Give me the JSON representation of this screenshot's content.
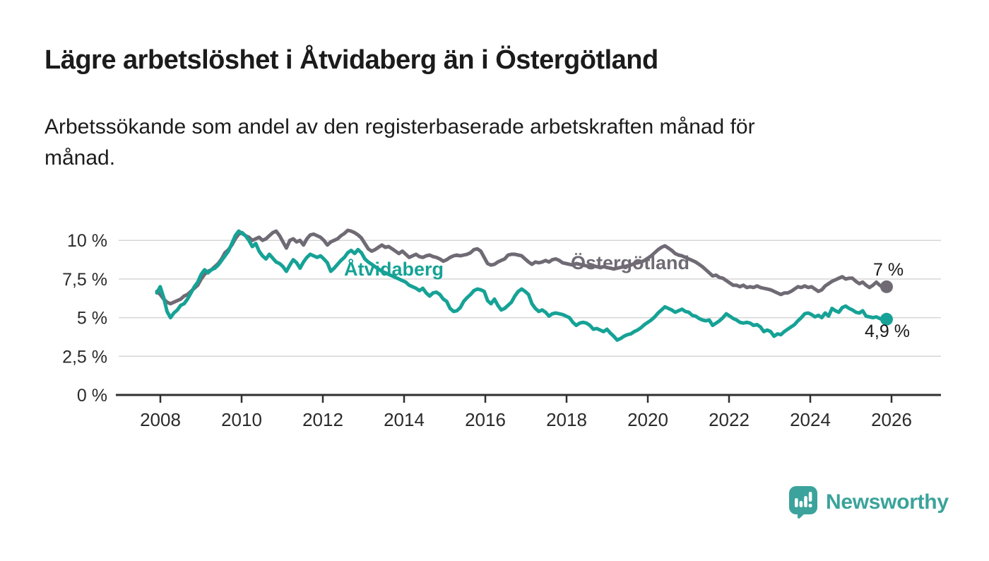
{
  "header": {
    "title": "Lägre arbetslöshet i Åtvidaberg än i Östergötland",
    "subtitle": "Arbetssökande som andel av den registerbaserade arbetskraften månad för månad."
  },
  "chart_data": {
    "type": "line",
    "title": "Lägre arbetslöshet i Åtvidaberg än i Östergötland",
    "subtitle": "Arbetssökande som andel av den registerbaserade arbetskraften månad för månad.",
    "unit": "%",
    "frequency": "monthly",
    "x_start": {
      "year": 2008,
      "month": 1
    },
    "x_end": {
      "year": 2025,
      "month": 11
    },
    "xlim": [
      2008,
      2026.5
    ],
    "ylim": [
      0,
      11
    ],
    "grid": "horizontal",
    "legend_position": "inline-labels",
    "x_tick_labels": [
      "2008",
      "2010",
      "2012",
      "2014",
      "2016",
      "2018",
      "2020",
      "2022",
      "2024",
      "2026"
    ],
    "y_ticks": [
      {
        "value": 0,
        "label": "0 %"
      },
      {
        "value": 2.5,
        "label": "2,5 %"
      },
      {
        "value": 5,
        "label": "5 %"
      },
      {
        "value": 7.5,
        "label": "7,5 %"
      },
      {
        "value": 10,
        "label": "10 %"
      }
    ],
    "series": [
      {
        "name": "Åtvidaberg",
        "color": "#16a296",
        "end_label": "4,9 %",
        "last_value": 4.9,
        "values": [
          6.6,
          7.0,
          6.3,
          5.4,
          5.0,
          5.3,
          5.5,
          5.8,
          5.9,
          6.2,
          6.6,
          7.0,
          7.3,
          7.8,
          8.1,
          7.9,
          8.1,
          8.2,
          8.4,
          8.7,
          9.0,
          9.3,
          9.8,
          10.3,
          10.6,
          10.45,
          10.3,
          10.0,
          9.6,
          9.8,
          9.3,
          9.0,
          8.8,
          9.1,
          8.85,
          8.6,
          8.5,
          8.3,
          8.0,
          8.4,
          8.75,
          8.55,
          8.2,
          8.6,
          8.9,
          9.1,
          9.0,
          8.9,
          9.0,
          8.8,
          8.55,
          8.0,
          8.2,
          8.45,
          8.7,
          8.9,
          9.2,
          9.35,
          9.15,
          9.4,
          9.2,
          8.8,
          8.6,
          8.45,
          8.3,
          8.15,
          8.0,
          7.9,
          7.8,
          7.7,
          7.6,
          7.5,
          7.4,
          7.3,
          7.1,
          7.0,
          6.9,
          6.75,
          6.9,
          6.6,
          6.4,
          6.6,
          6.65,
          6.5,
          6.2,
          6.05,
          5.6,
          5.4,
          5.45,
          5.65,
          6.05,
          6.3,
          6.5,
          6.75,
          6.85,
          6.8,
          6.7,
          6.1,
          5.9,
          6.2,
          5.8,
          5.5,
          5.6,
          5.8,
          6.0,
          6.4,
          6.7,
          6.85,
          6.7,
          6.5,
          5.9,
          5.6,
          5.4,
          5.5,
          5.35,
          5.1,
          5.25,
          5.3,
          5.25,
          5.2,
          5.1,
          5.0,
          4.7,
          4.5,
          4.65,
          4.7,
          4.65,
          4.5,
          4.25,
          4.3,
          4.2,
          4.1,
          4.25,
          4.0,
          3.8,
          3.55,
          3.65,
          3.8,
          3.9,
          3.95,
          4.1,
          4.2,
          4.35,
          4.55,
          4.7,
          4.85,
          5.05,
          5.3,
          5.5,
          5.7,
          5.6,
          5.5,
          5.35,
          5.45,
          5.55,
          5.4,
          5.35,
          5.15,
          5.1,
          4.95,
          4.85,
          4.8,
          4.85,
          4.5,
          4.65,
          4.8,
          5.0,
          5.25,
          5.1,
          4.95,
          4.85,
          4.7,
          4.65,
          4.7,
          4.65,
          4.5,
          4.55,
          4.4,
          4.1,
          4.2,
          4.1,
          3.8,
          3.95,
          3.9,
          4.1,
          4.25,
          4.4,
          4.55,
          4.8,
          5.0,
          5.25,
          5.3,
          5.2,
          5.05,
          5.15,
          5.0,
          5.3,
          5.1,
          5.6,
          5.45,
          5.35,
          5.65,
          5.75,
          5.6,
          5.5,
          5.35,
          5.3,
          5.45,
          5.1,
          5.05,
          5.0,
          5.05,
          4.95,
          4.85,
          4.9
        ]
      },
      {
        "name": "Östergötland",
        "color": "#6f6a74",
        "end_label": "7 %",
        "last_value": 7.0,
        "values": [
          6.7,
          6.5,
          6.2,
          6.0,
          5.9,
          6.0,
          6.1,
          6.2,
          6.4,
          6.5,
          6.7,
          6.9,
          7.1,
          7.5,
          7.8,
          8.0,
          8.1,
          8.3,
          8.5,
          8.8,
          9.2,
          9.4,
          9.7,
          10.1,
          10.4,
          10.5,
          10.3,
          10.2,
          10.0,
          10.1,
          10.2,
          10.0,
          10.1,
          10.3,
          10.5,
          10.6,
          10.3,
          9.9,
          9.5,
          10.0,
          10.1,
          9.9,
          10.0,
          9.7,
          10.1,
          10.35,
          10.4,
          10.3,
          10.2,
          10.0,
          9.7,
          9.9,
          10.0,
          10.1,
          10.3,
          10.45,
          10.65,
          10.6,
          10.5,
          10.35,
          10.15,
          9.8,
          9.45,
          9.3,
          9.4,
          9.55,
          9.7,
          9.55,
          9.6,
          9.45,
          9.3,
          9.15,
          9.3,
          9.1,
          8.9,
          9.0,
          9.1,
          8.95,
          8.9,
          9.0,
          9.05,
          8.95,
          8.9,
          8.8,
          8.65,
          8.75,
          8.9,
          9.0,
          9.05,
          9.0,
          9.05,
          9.1,
          9.2,
          9.4,
          9.45,
          9.3,
          8.9,
          8.5,
          8.4,
          8.45,
          8.6,
          8.7,
          8.8,
          9.05,
          9.1,
          9.1,
          9.05,
          9.0,
          8.8,
          8.6,
          8.45,
          8.6,
          8.55,
          8.6,
          8.7,
          8.6,
          8.75,
          8.8,
          8.7,
          8.55,
          8.5,
          8.45,
          8.4,
          8.5,
          8.45,
          8.4,
          8.35,
          8.3,
          8.35,
          8.3,
          8.25,
          8.3,
          8.25,
          8.2,
          8.15,
          8.2,
          8.25,
          8.3,
          8.35,
          8.4,
          8.5,
          8.55,
          8.6,
          8.7,
          8.85,
          9.0,
          9.2,
          9.4,
          9.55,
          9.65,
          9.5,
          9.35,
          9.15,
          9.05,
          9.0,
          8.9,
          8.8,
          8.7,
          8.6,
          8.45,
          8.3,
          8.1,
          7.9,
          7.7,
          7.75,
          7.6,
          7.55,
          7.4,
          7.25,
          7.1,
          7.1,
          7.0,
          7.1,
          6.95,
          7.0,
          6.95,
          7.05,
          6.95,
          6.9,
          6.85,
          6.8,
          6.7,
          6.6,
          6.5,
          6.6,
          6.6,
          6.7,
          6.85,
          7.0,
          6.95,
          7.05,
          6.95,
          7.0,
          6.85,
          6.7,
          6.8,
          7.05,
          7.2,
          7.35,
          7.45,
          7.55,
          7.65,
          7.5,
          7.55,
          7.55,
          7.35,
          7.2,
          7.3,
          7.1,
          6.95,
          7.1,
          7.3,
          7.1,
          6.95,
          7.0
        ]
      }
    ]
  },
  "footer": {
    "brand": "Newsworthy",
    "logo_icon": "bar-chart-speech-bubble-icon",
    "brand_color": "#3ba39b"
  },
  "palette": {
    "accent_teal": "#16a296",
    "accent_gray": "#6f6a74",
    "axis": "#2f2f2f",
    "gridline": "#d6d6d6"
  }
}
